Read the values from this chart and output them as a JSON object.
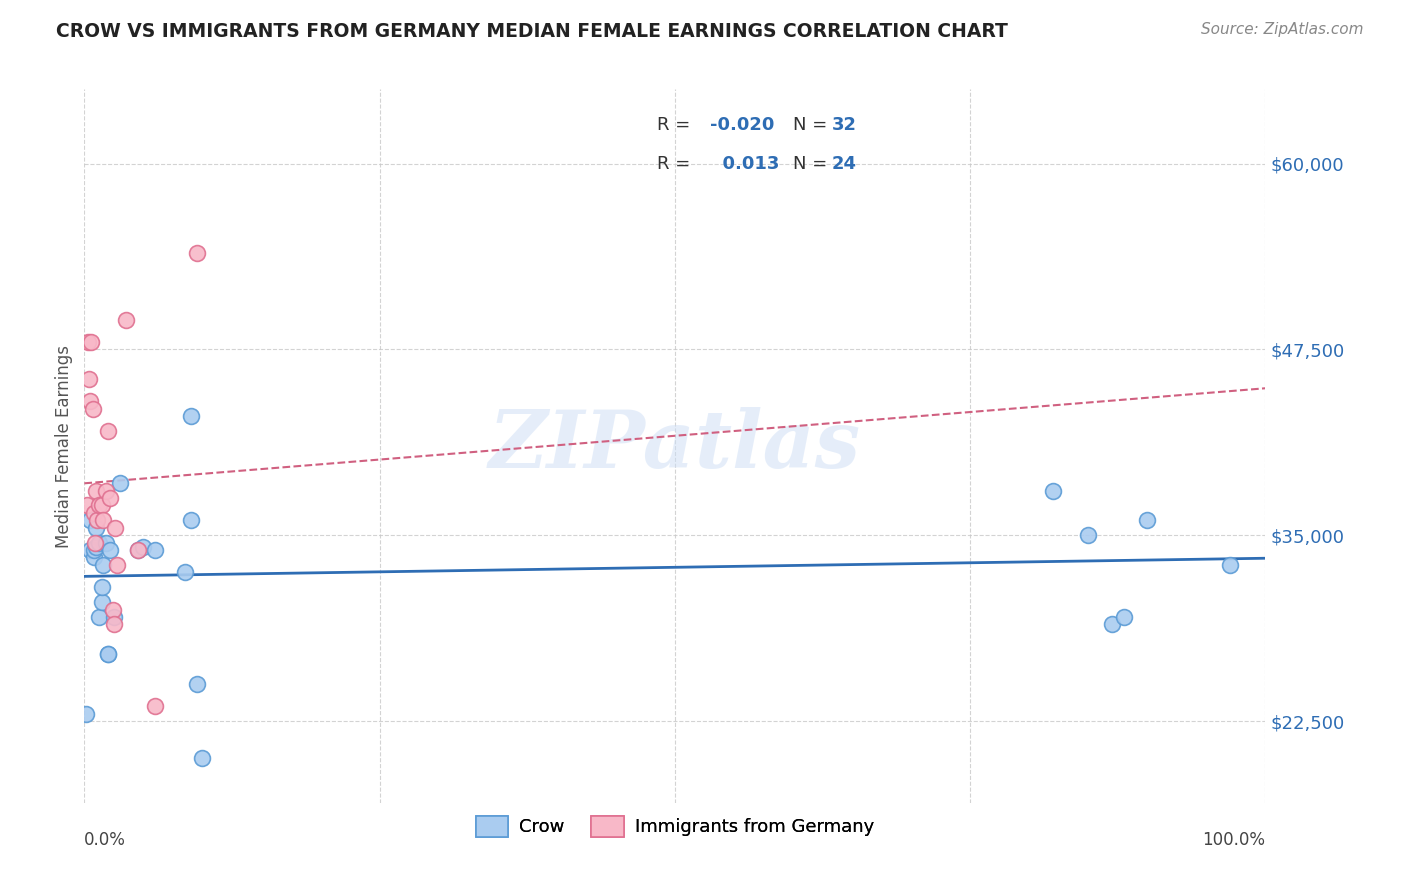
{
  "title": "CROW VS IMMIGRANTS FROM GERMANY MEDIAN FEMALE EARNINGS CORRELATION CHART",
  "source": "Source: ZipAtlas.com",
  "ylabel": "Median Female Earnings",
  "yticks": [
    22500,
    35000,
    47500,
    60000
  ],
  "ytick_labels": [
    "$22,500",
    "$35,000",
    "$47,500",
    "$60,000"
  ],
  "crow_color": "#aaccf0",
  "crow_edge_color": "#5b9bd5",
  "imm_color": "#f8b8c8",
  "imm_edge_color": "#e07090",
  "trendline_crow_color": "#2e6db4",
  "trendline_imm_color": "#d06080",
  "grid_color": "#c8c8c8",
  "background_color": "#ffffff",
  "watermark_color": "#ccddf5",
  "crow_x": [
    0.001,
    0.005,
    0.005,
    0.008,
    0.008,
    0.01,
    0.01,
    0.012,
    0.012,
    0.015,
    0.015,
    0.016,
    0.018,
    0.02,
    0.02,
    0.022,
    0.025,
    0.03,
    0.045,
    0.05,
    0.06,
    0.085,
    0.09,
    0.09,
    0.095,
    0.1,
    0.82,
    0.85,
    0.87,
    0.88,
    0.9,
    0.97
  ],
  "crow_y": [
    23000,
    36000,
    34000,
    33500,
    34000,
    35500,
    34200,
    29500,
    34500,
    30500,
    31500,
    33000,
    34500,
    27000,
    27000,
    34000,
    29500,
    38500,
    34000,
    34200,
    34000,
    32500,
    36000,
    43000,
    25000,
    20000,
    38000,
    35000,
    29000,
    29500,
    36000,
    33000
  ],
  "imm_x": [
    0.002,
    0.003,
    0.004,
    0.005,
    0.006,
    0.007,
    0.008,
    0.009,
    0.01,
    0.011,
    0.012,
    0.015,
    0.016,
    0.018,
    0.02,
    0.022,
    0.024,
    0.025,
    0.026,
    0.028,
    0.035,
    0.045,
    0.06,
    0.095
  ],
  "imm_y": [
    37000,
    48000,
    45500,
    44000,
    48000,
    43500,
    36500,
    34500,
    38000,
    36000,
    37000,
    37000,
    36000,
    38000,
    42000,
    37500,
    30000,
    29000,
    35500,
    33000,
    49500,
    34000,
    23500,
    54000
  ],
  "xlim": [
    0.0,
    1.0
  ],
  "ylim": [
    17000,
    65000
  ],
  "figsize": [
    14.06,
    8.92
  ],
  "dpi": 100
}
